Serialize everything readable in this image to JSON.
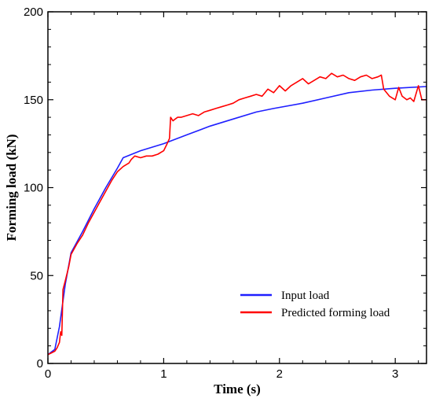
{
  "chart_data": {
    "type": "line",
    "title": "",
    "xlabel": "Time (s)",
    "ylabel": "Forming load (kN)",
    "xlim": [
      0,
      3.27
    ],
    "ylim": [
      0,
      200
    ],
    "x_ticks": [
      0,
      1,
      2,
      3
    ],
    "y_ticks": [
      0,
      50,
      100,
      150,
      200
    ],
    "grid": false,
    "legend_position": "lower-right",
    "series": [
      {
        "name": "Input load",
        "color": "#1f1fff",
        "x": [
          0,
          0.06,
          0.1,
          0.15,
          0.2,
          0.3,
          0.4,
          0.5,
          0.6,
          0.65,
          0.8,
          1.0,
          1.2,
          1.4,
          1.6,
          1.8,
          1.95,
          2.2,
          2.4,
          2.6,
          2.8,
          3.0,
          3.27
        ],
        "y": [
          5,
          8,
          21,
          45,
          63,
          75,
          88,
          100,
          111,
          117,
          121,
          125,
          130,
          135,
          139,
          143,
          145,
          148,
          151,
          154,
          155.5,
          156.5,
          157.5
        ]
      },
      {
        "name": "Predicted forming load",
        "color": "#ff0000",
        "x": [
          0,
          0.03,
          0.06,
          0.08,
          0.1,
          0.11,
          0.12,
          0.13,
          0.15,
          0.18,
          0.2,
          0.25,
          0.3,
          0.35,
          0.4,
          0.45,
          0.5,
          0.55,
          0.6,
          0.65,
          0.7,
          0.72,
          0.75,
          0.8,
          0.85,
          0.9,
          0.95,
          1.0,
          1.03,
          1.05,
          1.06,
          1.08,
          1.1,
          1.12,
          1.15,
          1.2,
          1.25,
          1.3,
          1.35,
          1.4,
          1.45,
          1.5,
          1.55,
          1.6,
          1.65,
          1.7,
          1.75,
          1.8,
          1.85,
          1.9,
          1.95,
          2.0,
          2.05,
          2.1,
          2.15,
          2.2,
          2.25,
          2.3,
          2.35,
          2.4,
          2.45,
          2.5,
          2.55,
          2.6,
          2.65,
          2.7,
          2.75,
          2.8,
          2.85,
          2.88,
          2.9,
          2.95,
          3.0,
          3.03,
          3.06,
          3.1,
          3.13,
          3.16,
          3.2,
          3.23,
          3.27
        ],
        "y": [
          5,
          6,
          7,
          9,
          12,
          18,
          16,
          42,
          47,
          55,
          62,
          68,
          73,
          80,
          86,
          92,
          98,
          104,
          109,
          112,
          114,
          116,
          118,
          117,
          118,
          118,
          119,
          121,
          125,
          128,
          140,
          138,
          139,
          140,
          140,
          141,
          142,
          141,
          143,
          144,
          145,
          146,
          147,
          148,
          150,
          151,
          152,
          153,
          152,
          156,
          154,
          158,
          155,
          158,
          160,
          162,
          159,
          161,
          163,
          162,
          165,
          163,
          164,
          162,
          161,
          163,
          164,
          162,
          163,
          164,
          156,
          152,
          150,
          157,
          152,
          150,
          151,
          149,
          158,
          150,
          150
        ]
      }
    ]
  }
}
